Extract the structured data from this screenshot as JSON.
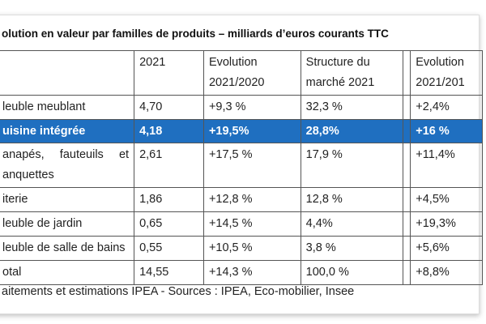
{
  "title": "olution en valeur par familles de produits – milliards d’euros courants TTC",
  "table": {
    "header": [
      "2021",
      "Evolution 2021/2020",
      "Structure du marché 2021",
      "Evolution 2021/201"
    ],
    "rows": [
      [
        "leuble meublant",
        "4,70",
        "+9,3 %",
        "32,3 %",
        "+2,4%"
      ],
      [
        "uisine intégrée",
        "4,18",
        "+19,5%",
        "28,8%",
        "+16 %"
      ],
      [
        "anapés, fauteuils et anquettes",
        "2,61",
        "+17,5 %",
        "17,9 %",
        "+11,4%"
      ],
      [
        "iterie",
        "1,86",
        "+12,8 %",
        "12,8 %",
        "+4,5%"
      ],
      [
        "leuble de jardin",
        "0,65",
        "+14,5 %",
        "4,4%",
        "+19,3%"
      ],
      [
        "leuble de salle de bains",
        "0,55",
        "+10,5 %",
        "3,8 %",
        "+5,6%"
      ],
      [
        "otal",
        "14,55",
        "+14,3 %",
        "100,0 %",
        "+8,8%"
      ]
    ]
  },
  "footer": "aitements et estimations IPEA - Sources : IPEA, Eco-mobilier, Insee"
}
